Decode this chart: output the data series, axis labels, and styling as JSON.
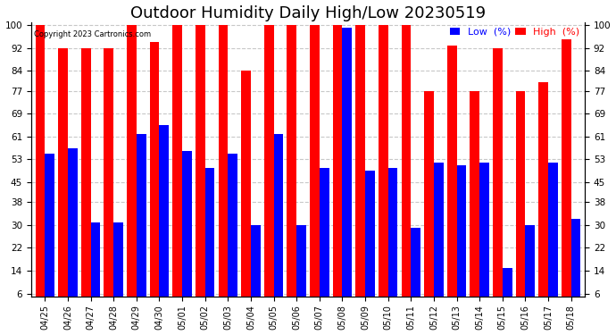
{
  "title": "Outdoor Humidity Daily High/Low 20230519",
  "copyright": "Copyright 2023 Cartronics.com",
  "ytick_labels": [
    6,
    14,
    22,
    30,
    38,
    45,
    53,
    61,
    69,
    77,
    84,
    92,
    100
  ],
  "dates": [
    "04/25",
    "04/26",
    "04/27",
    "04/28",
    "04/29",
    "04/30",
    "05/01",
    "05/02",
    "05/03",
    "05/04",
    "05/05",
    "05/06",
    "05/07",
    "05/08",
    "05/09",
    "05/10",
    "05/11",
    "05/12",
    "05/13",
    "05/14",
    "05/15",
    "05/16",
    "05/17",
    "05/18"
  ],
  "high": [
    100,
    92,
    92,
    92,
    100,
    94,
    100,
    100,
    100,
    84,
    100,
    100,
    100,
    100,
    100,
    100,
    100,
    77,
    93,
    77,
    92,
    77,
    80,
    95
  ],
  "low": [
    55,
    57,
    31,
    31,
    62,
    65,
    56,
    50,
    55,
    30,
    62,
    30,
    50,
    99,
    49,
    50,
    29,
    52,
    51,
    52,
    15,
    30,
    52,
    32
  ],
  "high_color": "#ff0000",
  "low_color": "#0000ff",
  "background_color": "#ffffff",
  "grid_color": "#c8c8c8",
  "title_fontsize": 13,
  "legend_low_label": "Low  (%)",
  "legend_high_label": "High  (%)",
  "ylim_min": 6,
  "ylim_max": 100
}
